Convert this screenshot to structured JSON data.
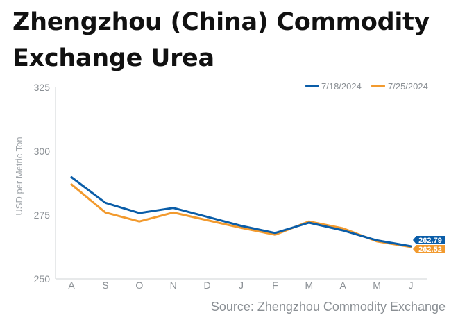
{
  "chart_data": {
    "type": "line",
    "title": "Zhengzhou (China) Commodity Exchange Urea",
    "ylabel": "USD per Metric Ton",
    "source": "Source: Zhengzhou Commodity Exchange",
    "categories": [
      "A",
      "S",
      "O",
      "N",
      "D",
      "J",
      "F",
      "M",
      "A",
      "M",
      "J"
    ],
    "y_ticks": [
      250,
      275,
      300,
      325
    ],
    "ylim": [
      250,
      325
    ],
    "legend_placement": "top-right",
    "grid": false,
    "series": [
      {
        "name": "7/18/2024",
        "color": "#0a5da8",
        "values": [
          289.8,
          279.8,
          275.8,
          277.8,
          274.3,
          270.8,
          268.0,
          272.0,
          269.0,
          265.1,
          262.79
        ],
        "end_label": "262.79"
      },
      {
        "name": "7/25/2024",
        "color": "#f29a2e",
        "values": [
          287.0,
          276.0,
          272.5,
          276.0,
          273.0,
          270.0,
          267.3,
          272.5,
          269.8,
          264.7,
          262.52
        ],
        "end_label": "262.52"
      }
    ]
  }
}
